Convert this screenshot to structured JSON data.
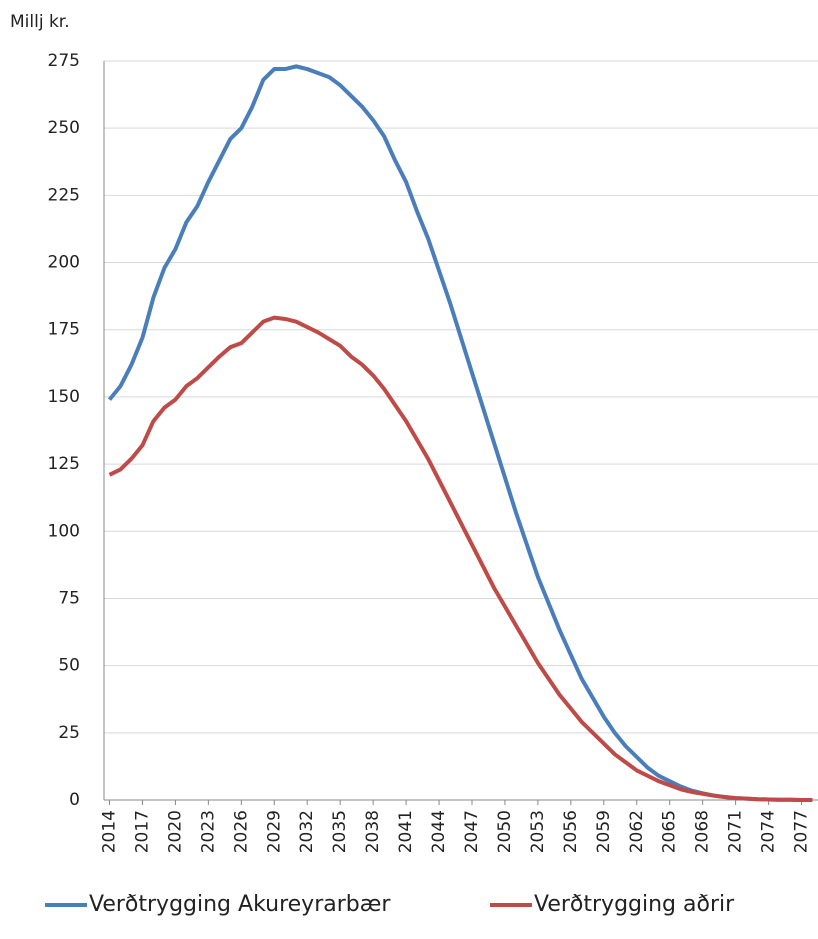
{
  "chart_data": {
    "type": "line",
    "y_label": "Millj kr.",
    "x": [
      2014,
      2015,
      2016,
      2017,
      2018,
      2019,
      2020,
      2021,
      2022,
      2023,
      2024,
      2025,
      2026,
      2027,
      2028,
      2029,
      2030,
      2031,
      2032,
      2033,
      2034,
      2035,
      2036,
      2037,
      2038,
      2039,
      2040,
      2041,
      2042,
      2043,
      2044,
      2045,
      2046,
      2047,
      2048,
      2049,
      2050,
      2051,
      2052,
      2053,
      2054,
      2055,
      2056,
      2057,
      2058,
      2059,
      2060,
      2061,
      2062,
      2063,
      2064,
      2065,
      2066,
      2067,
      2068,
      2069,
      2070,
      2071,
      2072,
      2073,
      2074,
      2075,
      2076,
      2077,
      2078
    ],
    "xlim": [
      2013.5,
      2078.5
    ],
    "xticks": [
      2014,
      2017,
      2020,
      2023,
      2026,
      2029,
      2032,
      2035,
      2038,
      2041,
      2044,
      2047,
      2050,
      2053,
      2056,
      2059,
      2062,
      2065,
      2068,
      2071,
      2074,
      2077
    ],
    "ylim": [
      0,
      275
    ],
    "yticks": [
      0,
      25,
      50,
      75,
      100,
      125,
      150,
      175,
      200,
      225,
      250,
      275
    ],
    "grid": true,
    "legend": "bottom",
    "series": [
      {
        "name": "Verðtrygging Akureyrarbær",
        "color": "#4a7ebb",
        "values": [
          149,
          154,
          162,
          172,
          187,
          198,
          205,
          215,
          221,
          230,
          238,
          246,
          250,
          258,
          268,
          272,
          272,
          273,
          272,
          270.5,
          269,
          266,
          262,
          258,
          253,
          247,
          238,
          230,
          219,
          209,
          197,
          185,
          172,
          159,
          146,
          133,
          120,
          107,
          95,
          83,
          73,
          63,
          54,
          45,
          38,
          31,
          25,
          20,
          16,
          12,
          9,
          7,
          5,
          3.5,
          2.5,
          1.7,
          1.1,
          0.7,
          0.5,
          0.3,
          0.2,
          0.1,
          0.1,
          0,
          0
        ]
      },
      {
        "name": "Verðtrygging aðrir",
        "color": "#be4b48",
        "values": [
          121,
          123,
          127,
          132,
          141,
          146,
          149,
          154,
          157,
          161,
          165,
          168.5,
          170,
          174,
          178,
          179.5,
          179,
          178,
          176,
          174,
          171.5,
          169,
          165,
          162,
          158,
          153,
          147,
          141,
          134,
          127,
          119,
          111,
          103,
          95,
          87,
          79,
          72,
          65,
          58,
          51,
          45,
          39,
          34,
          29,
          25,
          21,
          17,
          14,
          11,
          9,
          7,
          5.5,
          4,
          3,
          2.3,
          1.6,
          1.1,
          0.7,
          0.5,
          0.3,
          0.2,
          0.1,
          0.1,
          0,
          0
        ]
      }
    ]
  }
}
